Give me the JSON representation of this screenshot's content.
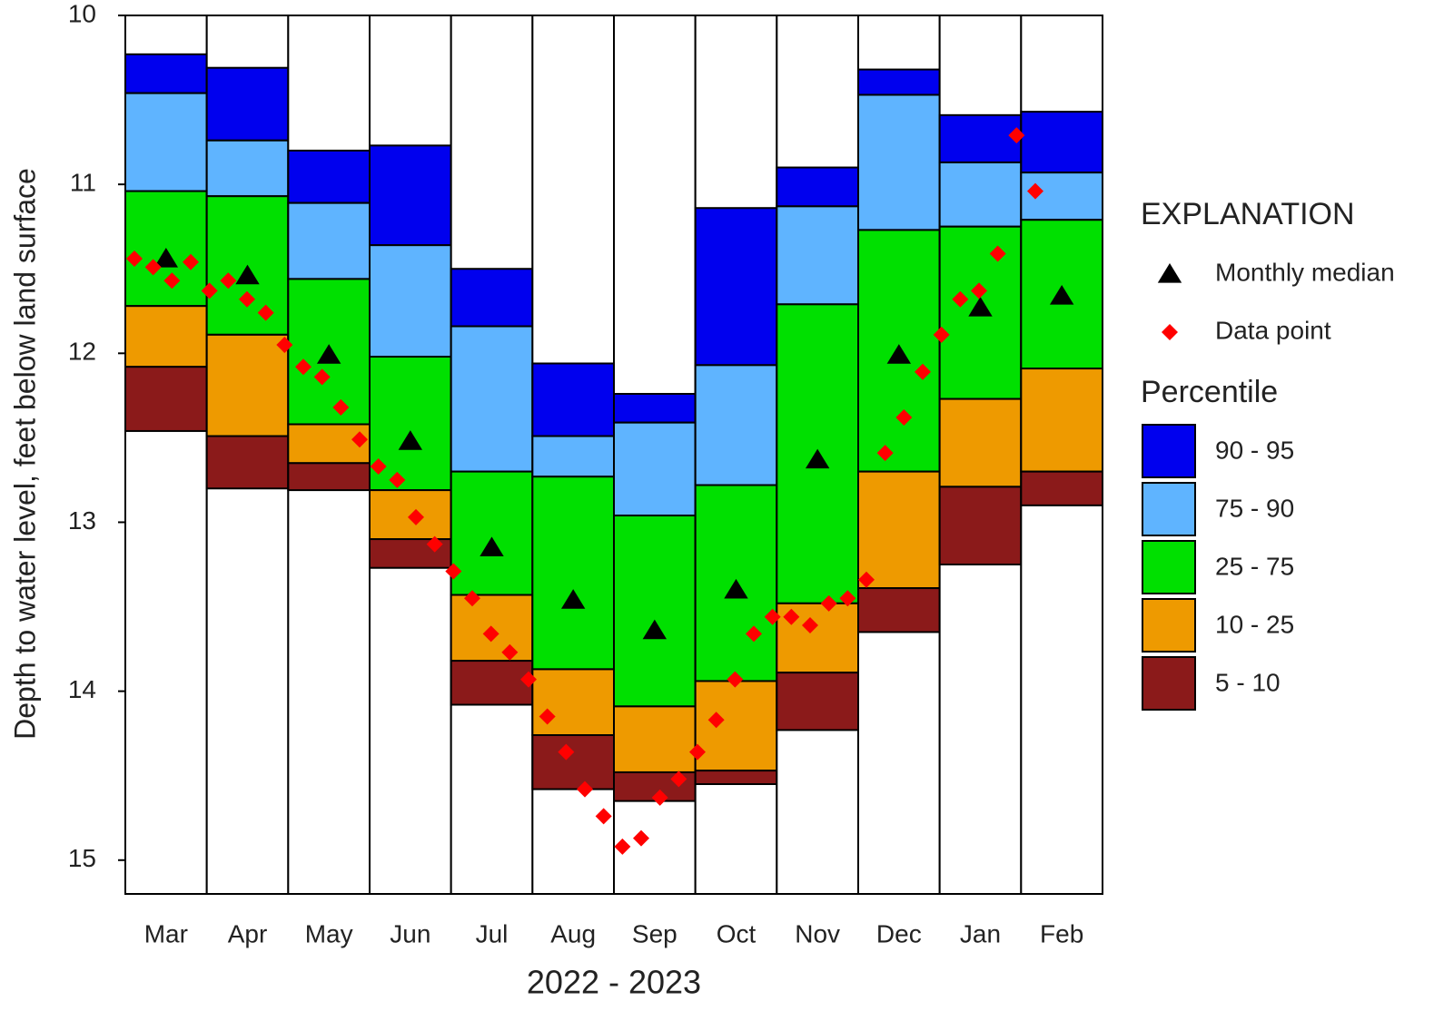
{
  "chart_data": {
    "type": "percentile-boxes",
    "y_label": "Depth to water level, feet below land surface",
    "x_label": "2022 - 2023",
    "legend_title": "EXPLANATION",
    "bands_title": "Percentile",
    "categories": [
      "Mar",
      "Apr",
      "May",
      "Jun",
      "Jul",
      "Aug",
      "Sep",
      "Oct",
      "Nov",
      "Dec",
      "Jan",
      "Feb"
    ],
    "ylim": [
      10,
      15.2
    ],
    "y_inverted": true,
    "yticks": [
      10,
      11,
      12,
      13,
      14,
      15
    ],
    "boundaries": [
      {
        "values": [
          10.23,
          10.31,
          10.8,
          10.77,
          11.5,
          12.06,
          12.24,
          11.14,
          10.9,
          10.32,
          10.59,
          10.57
        ]
      },
      {
        "values": [
          10.46,
          10.74,
          11.11,
          11.36,
          11.84,
          12.49,
          12.41,
          12.07,
          11.13,
          10.47,
          10.87,
          10.93
        ]
      },
      {
        "values": [
          11.04,
          11.07,
          11.56,
          12.02,
          12.7,
          12.73,
          12.96,
          12.78,
          11.71,
          11.27,
          11.25,
          11.21
        ]
      },
      {
        "values": [
          11.72,
          11.89,
          12.42,
          12.81,
          13.43,
          13.87,
          14.09,
          13.94,
          13.48,
          12.7,
          12.27,
          12.09
        ]
      },
      {
        "values": [
          12.08,
          12.49,
          12.65,
          13.1,
          13.82,
          14.26,
          14.48,
          14.47,
          13.89,
          13.39,
          12.79,
          12.7
        ]
      },
      {
        "values": [
          12.46,
          12.8,
          12.81,
          13.27,
          14.08,
          14.58,
          14.65,
          14.55,
          14.23,
          13.65,
          13.25,
          12.9
        ]
      }
    ],
    "bands": [
      {
        "name": "90 - 95",
        "color": "#0000ee"
      },
      {
        "name": "75 - 90",
        "color": "#5fb4ff"
      },
      {
        "name": "25 - 75",
        "color": "#00e000"
      },
      {
        "name": "10 - 25",
        "color": "#ee9a00"
      },
      {
        "name": "5 - 10",
        "color": "#8b1a1a"
      }
    ],
    "series": [
      {
        "name": "Monthly median",
        "marker": "triangle",
        "color": "#000000",
        "values": [
          11.44,
          11.54,
          12.01,
          12.52,
          13.15,
          13.46,
          13.64,
          13.4,
          12.63,
          12.01,
          11.73,
          11.66
        ]
      },
      {
        "name": "Data point",
        "marker": "diamond",
        "color": "#ff0000",
        "values": [
          11.44,
          11.49,
          11.57,
          11.46,
          11.63,
          11.57,
          11.68,
          11.76,
          11.95,
          12.08,
          12.14,
          12.32,
          12.51,
          12.67,
          12.75,
          12.97,
          13.13,
          13.29,
          13.45,
          13.66,
          13.77,
          13.93,
          14.15,
          14.36,
          14.58,
          14.74,
          14.92,
          14.87,
          14.63,
          14.52,
          14.36,
          14.17,
          13.93,
          13.66,
          13.56,
          13.56,
          13.61,
          13.48,
          13.45,
          13.34,
          12.59,
          12.38,
          12.11,
          11.89,
          11.68,
          11.63,
          11.41,
          10.71,
          11.04
        ]
      }
    ]
  }
}
